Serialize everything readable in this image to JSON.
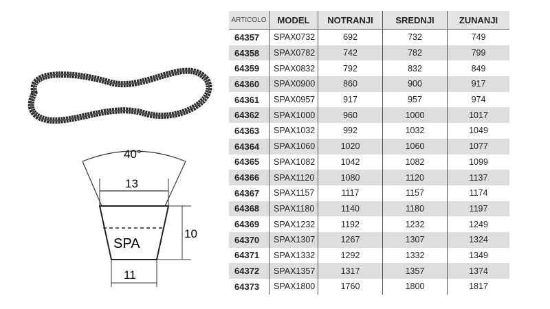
{
  "diagram": {
    "angle": "40°",
    "top_width": "13",
    "height": "10",
    "bottom_width": "11",
    "profile": "SPA"
  },
  "table": {
    "headers": [
      "ARTICOLO",
      "MODEL",
      "NOTRANJI",
      "SREDNJI",
      "ZUNANJI"
    ],
    "rows": [
      [
        "64357",
        "SPAX0732",
        "692",
        "732",
        "749"
      ],
      [
        "64358",
        "SPAX0782",
        "742",
        "782",
        "799"
      ],
      [
        "64359",
        "SPAX0832",
        "792",
        "832",
        "849"
      ],
      [
        "64360",
        "SPAX0900",
        "860",
        "900",
        "917"
      ],
      [
        "64361",
        "SPAX0957",
        "917",
        "957",
        "974"
      ],
      [
        "64362",
        "SPAX1000",
        "960",
        "1000",
        "1017"
      ],
      [
        "64363",
        "SPAX1032",
        "992",
        "1032",
        "1049"
      ],
      [
        "64364",
        "SPAX1060",
        "1020",
        "1060",
        "1077"
      ],
      [
        "64365",
        "SPAX1082",
        "1042",
        "1082",
        "1099"
      ],
      [
        "64366",
        "SPAX1120",
        "1080",
        "1120",
        "1137"
      ],
      [
        "64367",
        "SPAX1157",
        "1117",
        "1157",
        "1174"
      ],
      [
        "64368",
        "SPAX1180",
        "1140",
        "1180",
        "1197"
      ],
      [
        "64369",
        "SPAX1232",
        "1192",
        "1232",
        "1249"
      ],
      [
        "64370",
        "SPAX1307",
        "1267",
        "1307",
        "1324"
      ],
      [
        "64371",
        "SPAX1332",
        "1292",
        "1332",
        "1349"
      ],
      [
        "64372",
        "SPAX1357",
        "1317",
        "1357",
        "1374"
      ],
      [
        "64373",
        "SPAX1800",
        "1760",
        "1800",
        "1817"
      ]
    ]
  }
}
